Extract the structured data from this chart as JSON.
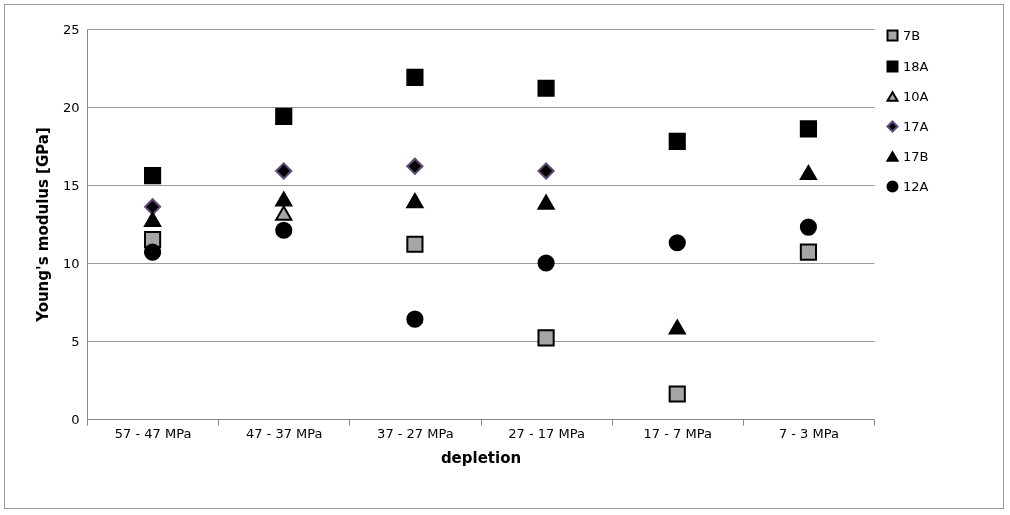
{
  "chart_data": {
    "type": "scatter",
    "xlabel": "depletion",
    "ylabel": "Young's modulus [GPa]",
    "categories": [
      "57 - 47 MPa",
      "47 - 37 MPa",
      "37 - 27 MPa",
      "27 - 17 MPa",
      "17 - 7 MPa",
      "7 - 3 MPa"
    ],
    "ylim": [
      0,
      25
    ],
    "yticks": [
      0,
      5,
      10,
      15,
      20,
      25
    ],
    "grid": "y",
    "legend": "right",
    "series": [
      {
        "name": "7B",
        "color": "#a6a6a6",
        "marker": "square",
        "values": [
          11.5,
          null,
          11.2,
          5.2,
          1.6,
          10.7
        ]
      },
      {
        "name": "18A",
        "color": "#000000",
        "marker": "square",
        "values": [
          15.6,
          19.4,
          21.9,
          21.2,
          17.8,
          18.6
        ]
      },
      {
        "name": "10A",
        "color": "#a6a6a6",
        "marker": "triangle",
        "values": [
          null,
          13.2,
          null,
          null,
          null,
          null
        ]
      },
      {
        "name": "17A",
        "color": "#000000",
        "marker": "diamond",
        "values": [
          13.6,
          15.9,
          16.2,
          15.9,
          null,
          null
        ]
      },
      {
        "name": "17B",
        "color": "#000000",
        "marker": "triangle",
        "values": [
          12.8,
          14.1,
          14.0,
          13.9,
          5.9,
          15.8
        ]
      },
      {
        "name": "12A",
        "color": "#000000",
        "marker": "circle",
        "values": [
          10.7,
          12.1,
          6.4,
          10.0,
          11.3,
          12.3
        ]
      }
    ]
  }
}
